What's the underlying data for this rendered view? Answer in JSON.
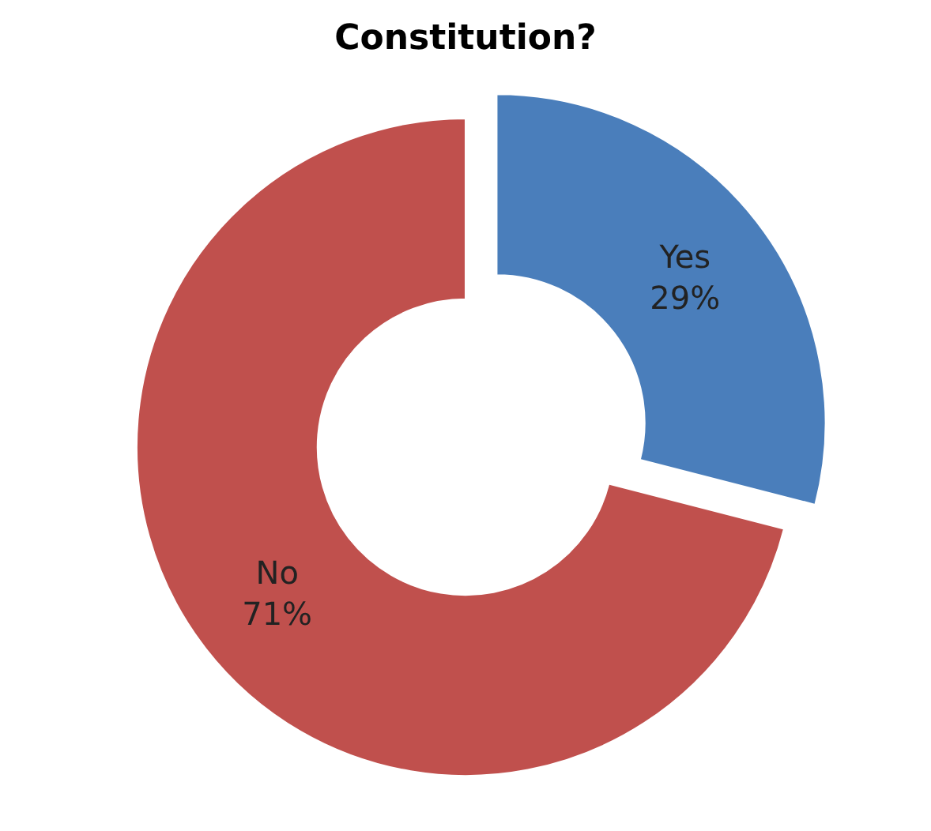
{
  "chart_data": {
    "type": "donut",
    "title": "Constitution?",
    "categories": [
      "Yes",
      "No"
    ],
    "values": [
      29,
      71
    ],
    "value_labels": [
      "29%",
      "71%"
    ],
    "colors": [
      "#4a7ebb",
      "#c0504d"
    ],
    "legend": false
  }
}
